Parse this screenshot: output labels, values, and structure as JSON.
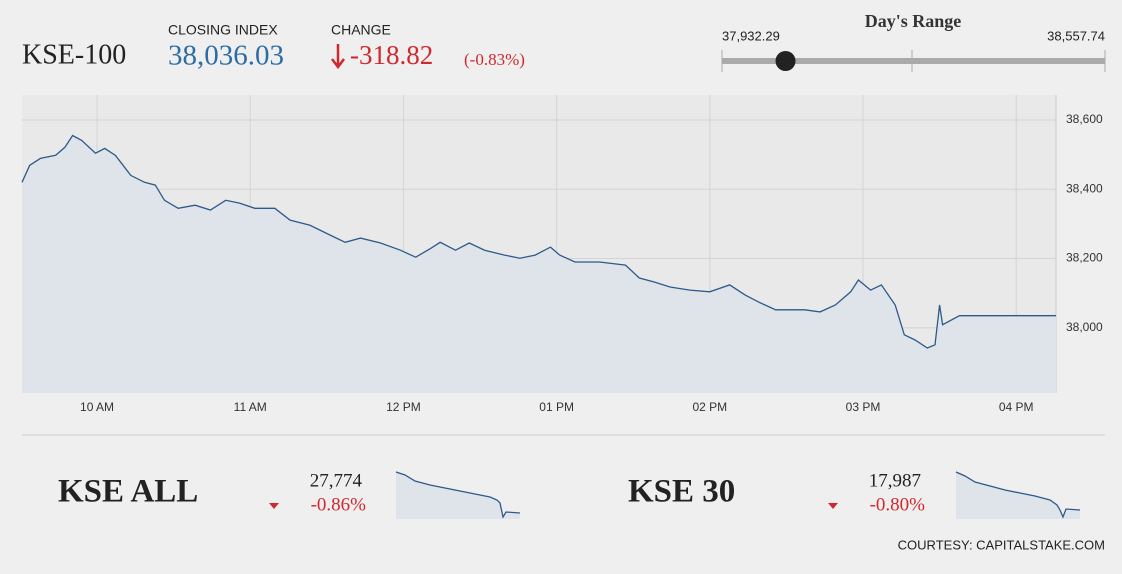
{
  "header": {
    "title": "KSE-100",
    "closing_label": "CLOSING INDEX",
    "closing_value": {
      "value": 38036.03,
      "label": "38,036.03"
    },
    "change_label": "CHANGE",
    "change_value": -318.82,
    "change_percent": "(-0.83%)"
  },
  "day_range": {
    "title": "Day's Range",
    "low": {
      "value": 37932.29,
      "label": "37,932.29"
    },
    "high": {
      "value": 38557.74,
      "label": "38,557.74"
    }
  },
  "chart_data": {
    "type": "line",
    "color": "#2d5a8a",
    "grid": true,
    "x": [
      9.51,
      9.56,
      9.63,
      9.73,
      9.79,
      9.84,
      9.9,
      9.99,
      10.05,
      10.12,
      10.22,
      10.31,
      10.38,
      10.44,
      10.53,
      10.64,
      10.74,
      10.84,
      10.93,
      11.03,
      11.16,
      11.26,
      11.39,
      11.52,
      11.62,
      11.72,
      11.85,
      11.98,
      12.08,
      12.18,
      12.24,
      12.34,
      12.43,
      12.53,
      12.66,
      12.76,
      12.86,
      12.96,
      13.02,
      13.12,
      13.28,
      13.45,
      13.54,
      13.64,
      13.74,
      13.87,
      14.0,
      14.13,
      14.23,
      14.33,
      14.43,
      14.52,
      14.62,
      14.72,
      14.82,
      14.92,
      14.97,
      15.05,
      15.12,
      15.21,
      15.27,
      15.34,
      15.42,
      15.47,
      15.5,
      15.52,
      15.63,
      16.26
    ],
    "values": [
      38420,
      38469,
      38489,
      38498,
      38521,
      38555,
      38541,
      38504,
      38518,
      38498,
      38440,
      38420,
      38412,
      38368,
      38345,
      38354,
      38340,
      38368,
      38360,
      38345,
      38345,
      38311,
      38296,
      38268,
      38247,
      38259,
      38245,
      38224,
      38204,
      38230,
      38247,
      38224,
      38245,
      38224,
      38210,
      38201,
      38210,
      38233,
      38210,
      38190,
      38190,
      38181,
      38144,
      38132,
      38118,
      38109,
      38104,
      38124,
      38095,
      38072,
      38052,
      38052,
      38052,
      38046,
      38066,
      38104,
      38138,
      38109,
      38124,
      38066,
      37980,
      37965,
      37942,
      37951,
      38066,
      38009,
      38035,
      38035
    ],
    "xlim": [
      9.51,
      16.26
    ],
    "ylim": [
      37812,
      38672
    ],
    "xticks": [
      {
        "value": 10,
        "label": "10 AM"
      },
      {
        "value": 11,
        "label": "11 AM"
      },
      {
        "value": 12,
        "label": "12 PM"
      },
      {
        "value": 13,
        "label": "01 PM"
      },
      {
        "value": 14,
        "label": "02 PM"
      },
      {
        "value": 15,
        "label": "03 PM"
      },
      {
        "value": 16,
        "label": "04 PM"
      }
    ],
    "yticks": [
      {
        "value": 38000,
        "label": "38,000"
      },
      {
        "value": 38200,
        "label": "38,200"
      },
      {
        "value": 38400,
        "label": "38,400"
      },
      {
        "value": 38600,
        "label": "38,600"
      }
    ]
  },
  "indices": [
    {
      "name": "KSE ALL",
      "value": "27,774",
      "change": "-0.86%"
    },
    {
      "name": "KSE 30",
      "value": "17,987",
      "change": "-0.80%"
    }
  ],
  "footer": "COURTESY: CAPITALSTAKE.COM"
}
